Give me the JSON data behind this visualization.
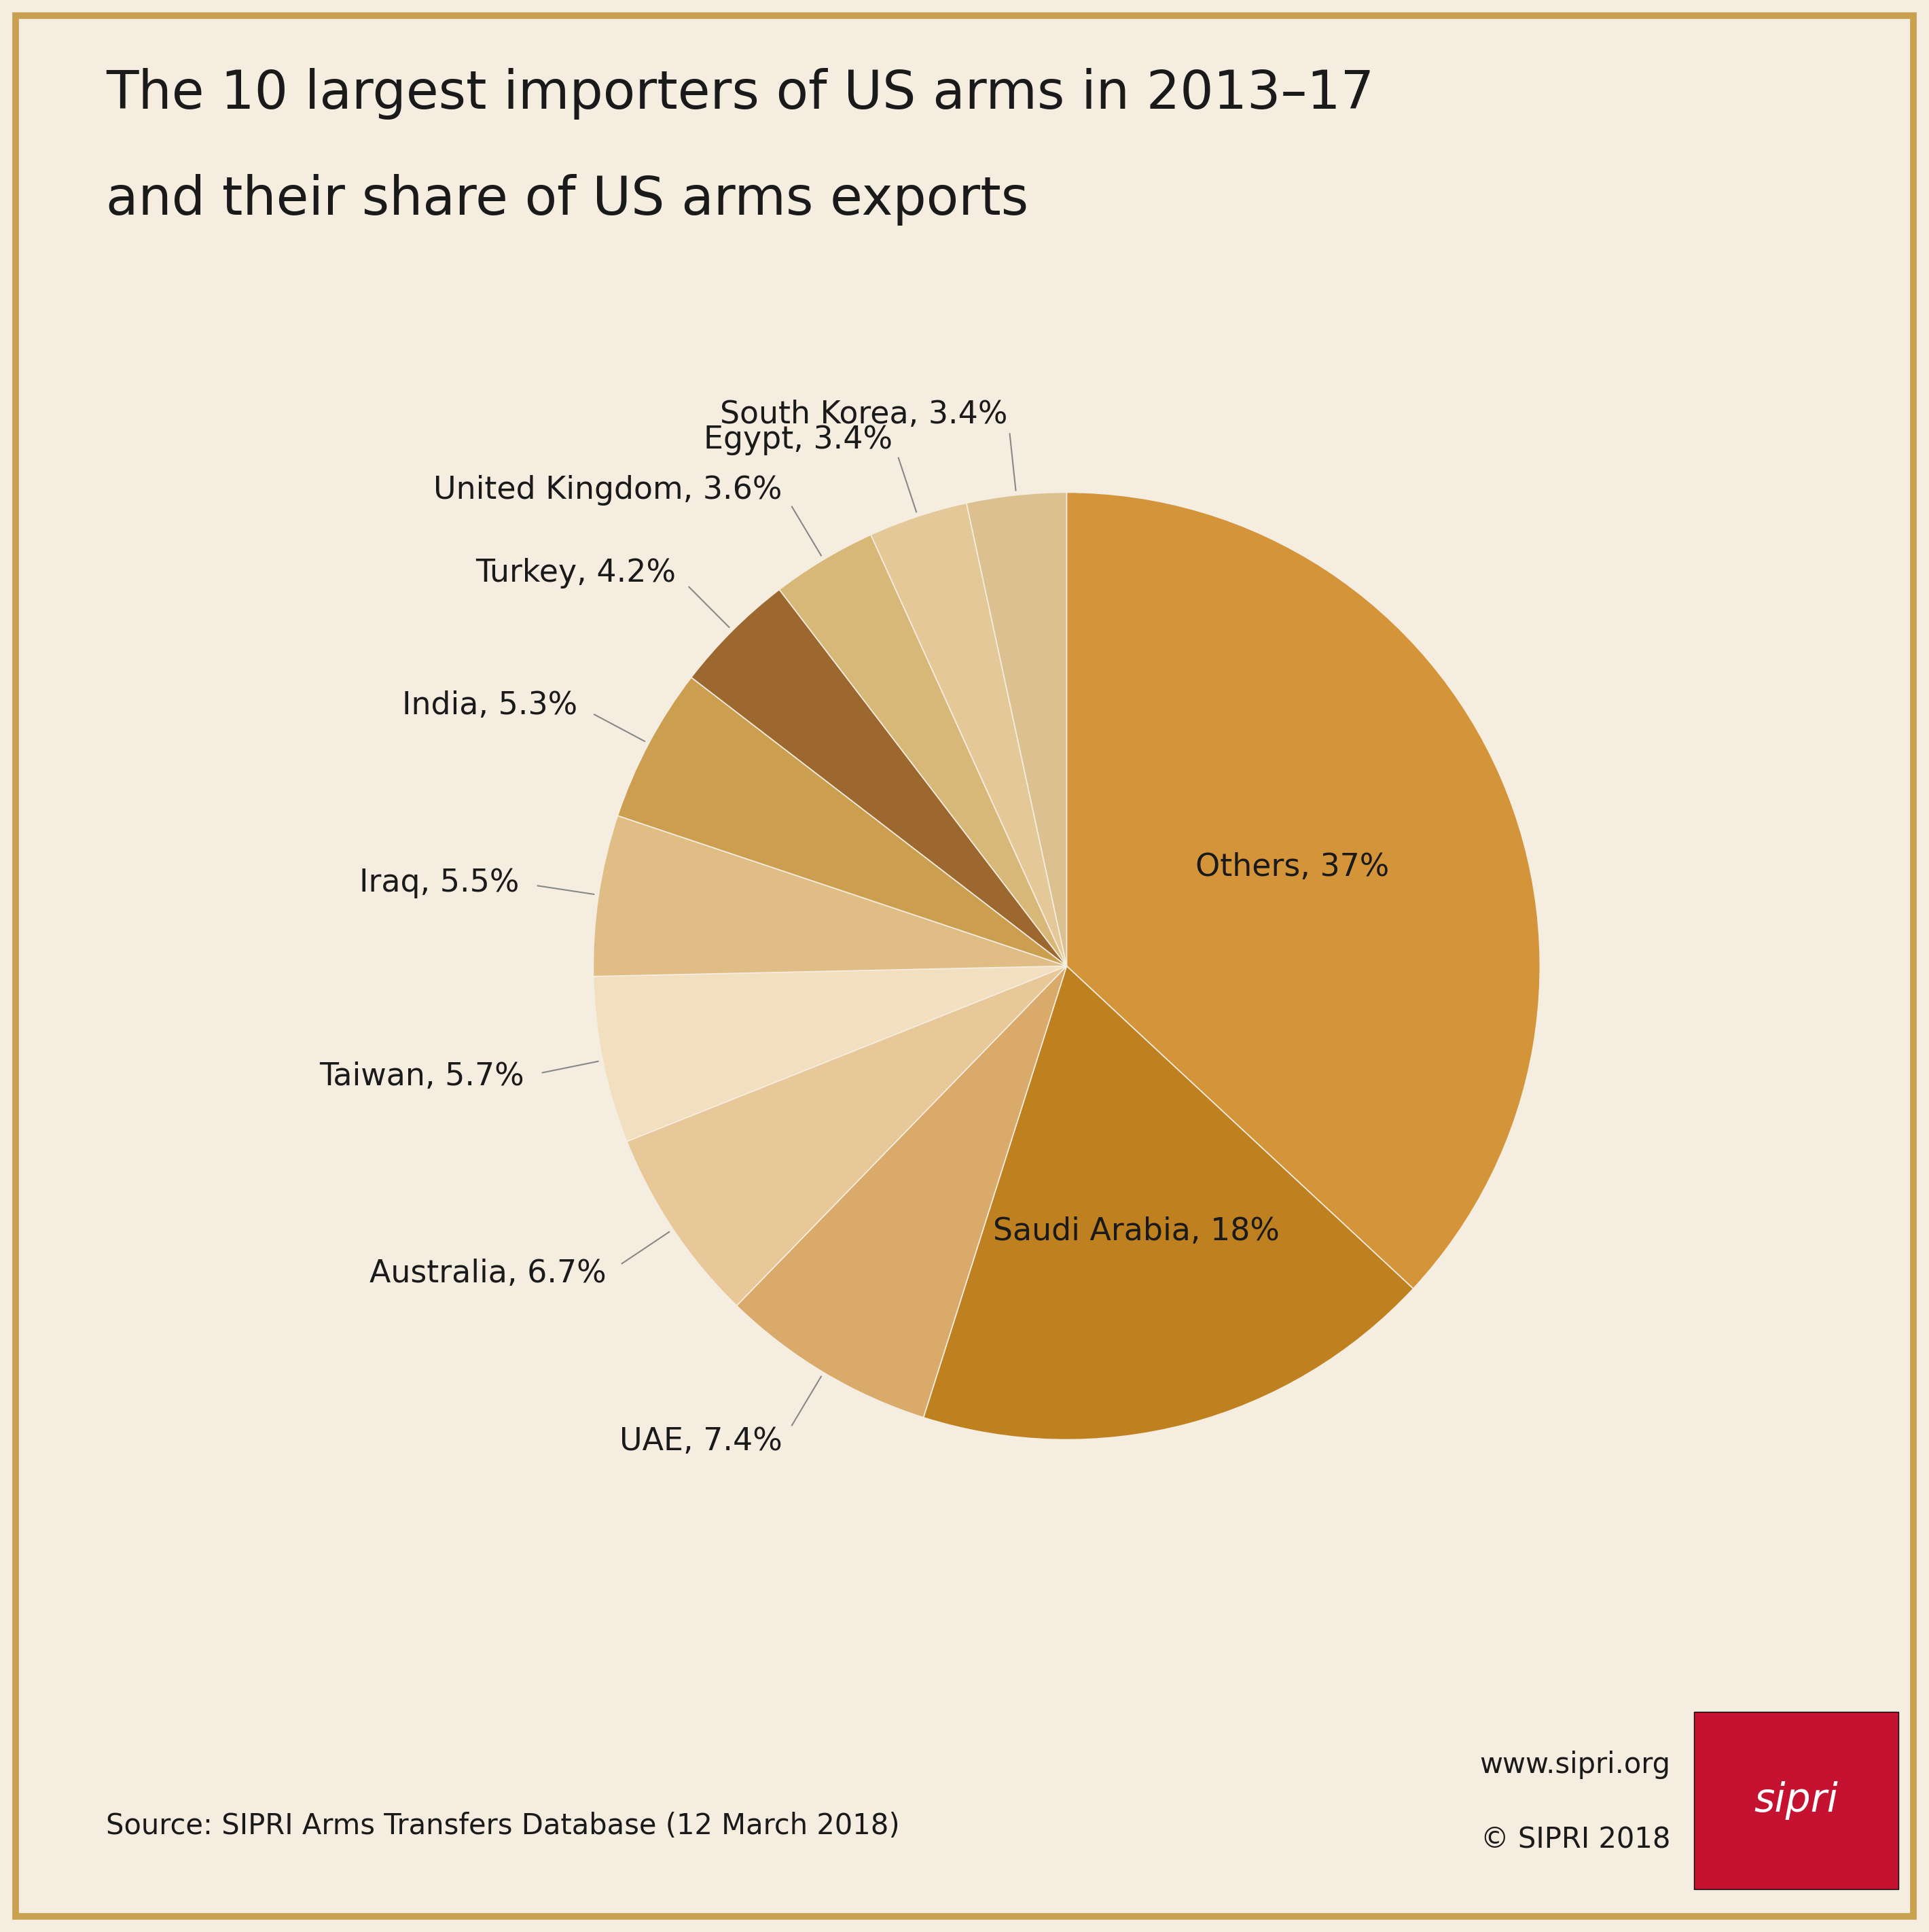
{
  "title_line1": "The 10 largest importers of US arms in 2013–17",
  "title_line2": "and their share of US arms exports",
  "background_color": "#f5ede0",
  "border_color": "#c8a050",
  "labels": [
    "Others",
    "Saudi Arabia",
    "UAE",
    "Australia",
    "Taiwan",
    "Iraq",
    "India",
    "Turkey",
    "United Kingdom",
    "Egypt",
    "South Korea"
  ],
  "values": [
    37,
    18,
    7.4,
    6.7,
    5.7,
    5.5,
    5.3,
    4.2,
    3.6,
    3.4,
    3.4
  ],
  "label_texts": [
    "Others, 37%",
    "Saudi Arabia, 18%",
    "UAE, 7.4%",
    "Australia, 6.7%",
    "Taiwan, 5.7%",
    "Iraq, 5.5%",
    "India, 5.3%",
    "Turkey, 4.2%",
    "United Kingdom, 3.6%",
    "Egypt, 3.4%",
    "South Korea, 3.4%"
  ],
  "colors": [
    "#d4943a",
    "#bf8020",
    "#d9aa6a",
    "#e8c898",
    "#f2dfc0",
    "#dfbd84",
    "#cc9e50",
    "#9c6830",
    "#d8b878",
    "#e4c898",
    "#dcc090"
  ],
  "source_text": "Source: SIPRI Arms Transfers Database (12 March 2018)",
  "copyright_text": "© SIPRI 2018",
  "website_text": "www.sipri.org",
  "sipri_box_color": "#c41230",
  "text_color": "#1a1a1a",
  "title_fontsize": 56,
  "label_fontsize": 33,
  "source_fontsize": 30
}
